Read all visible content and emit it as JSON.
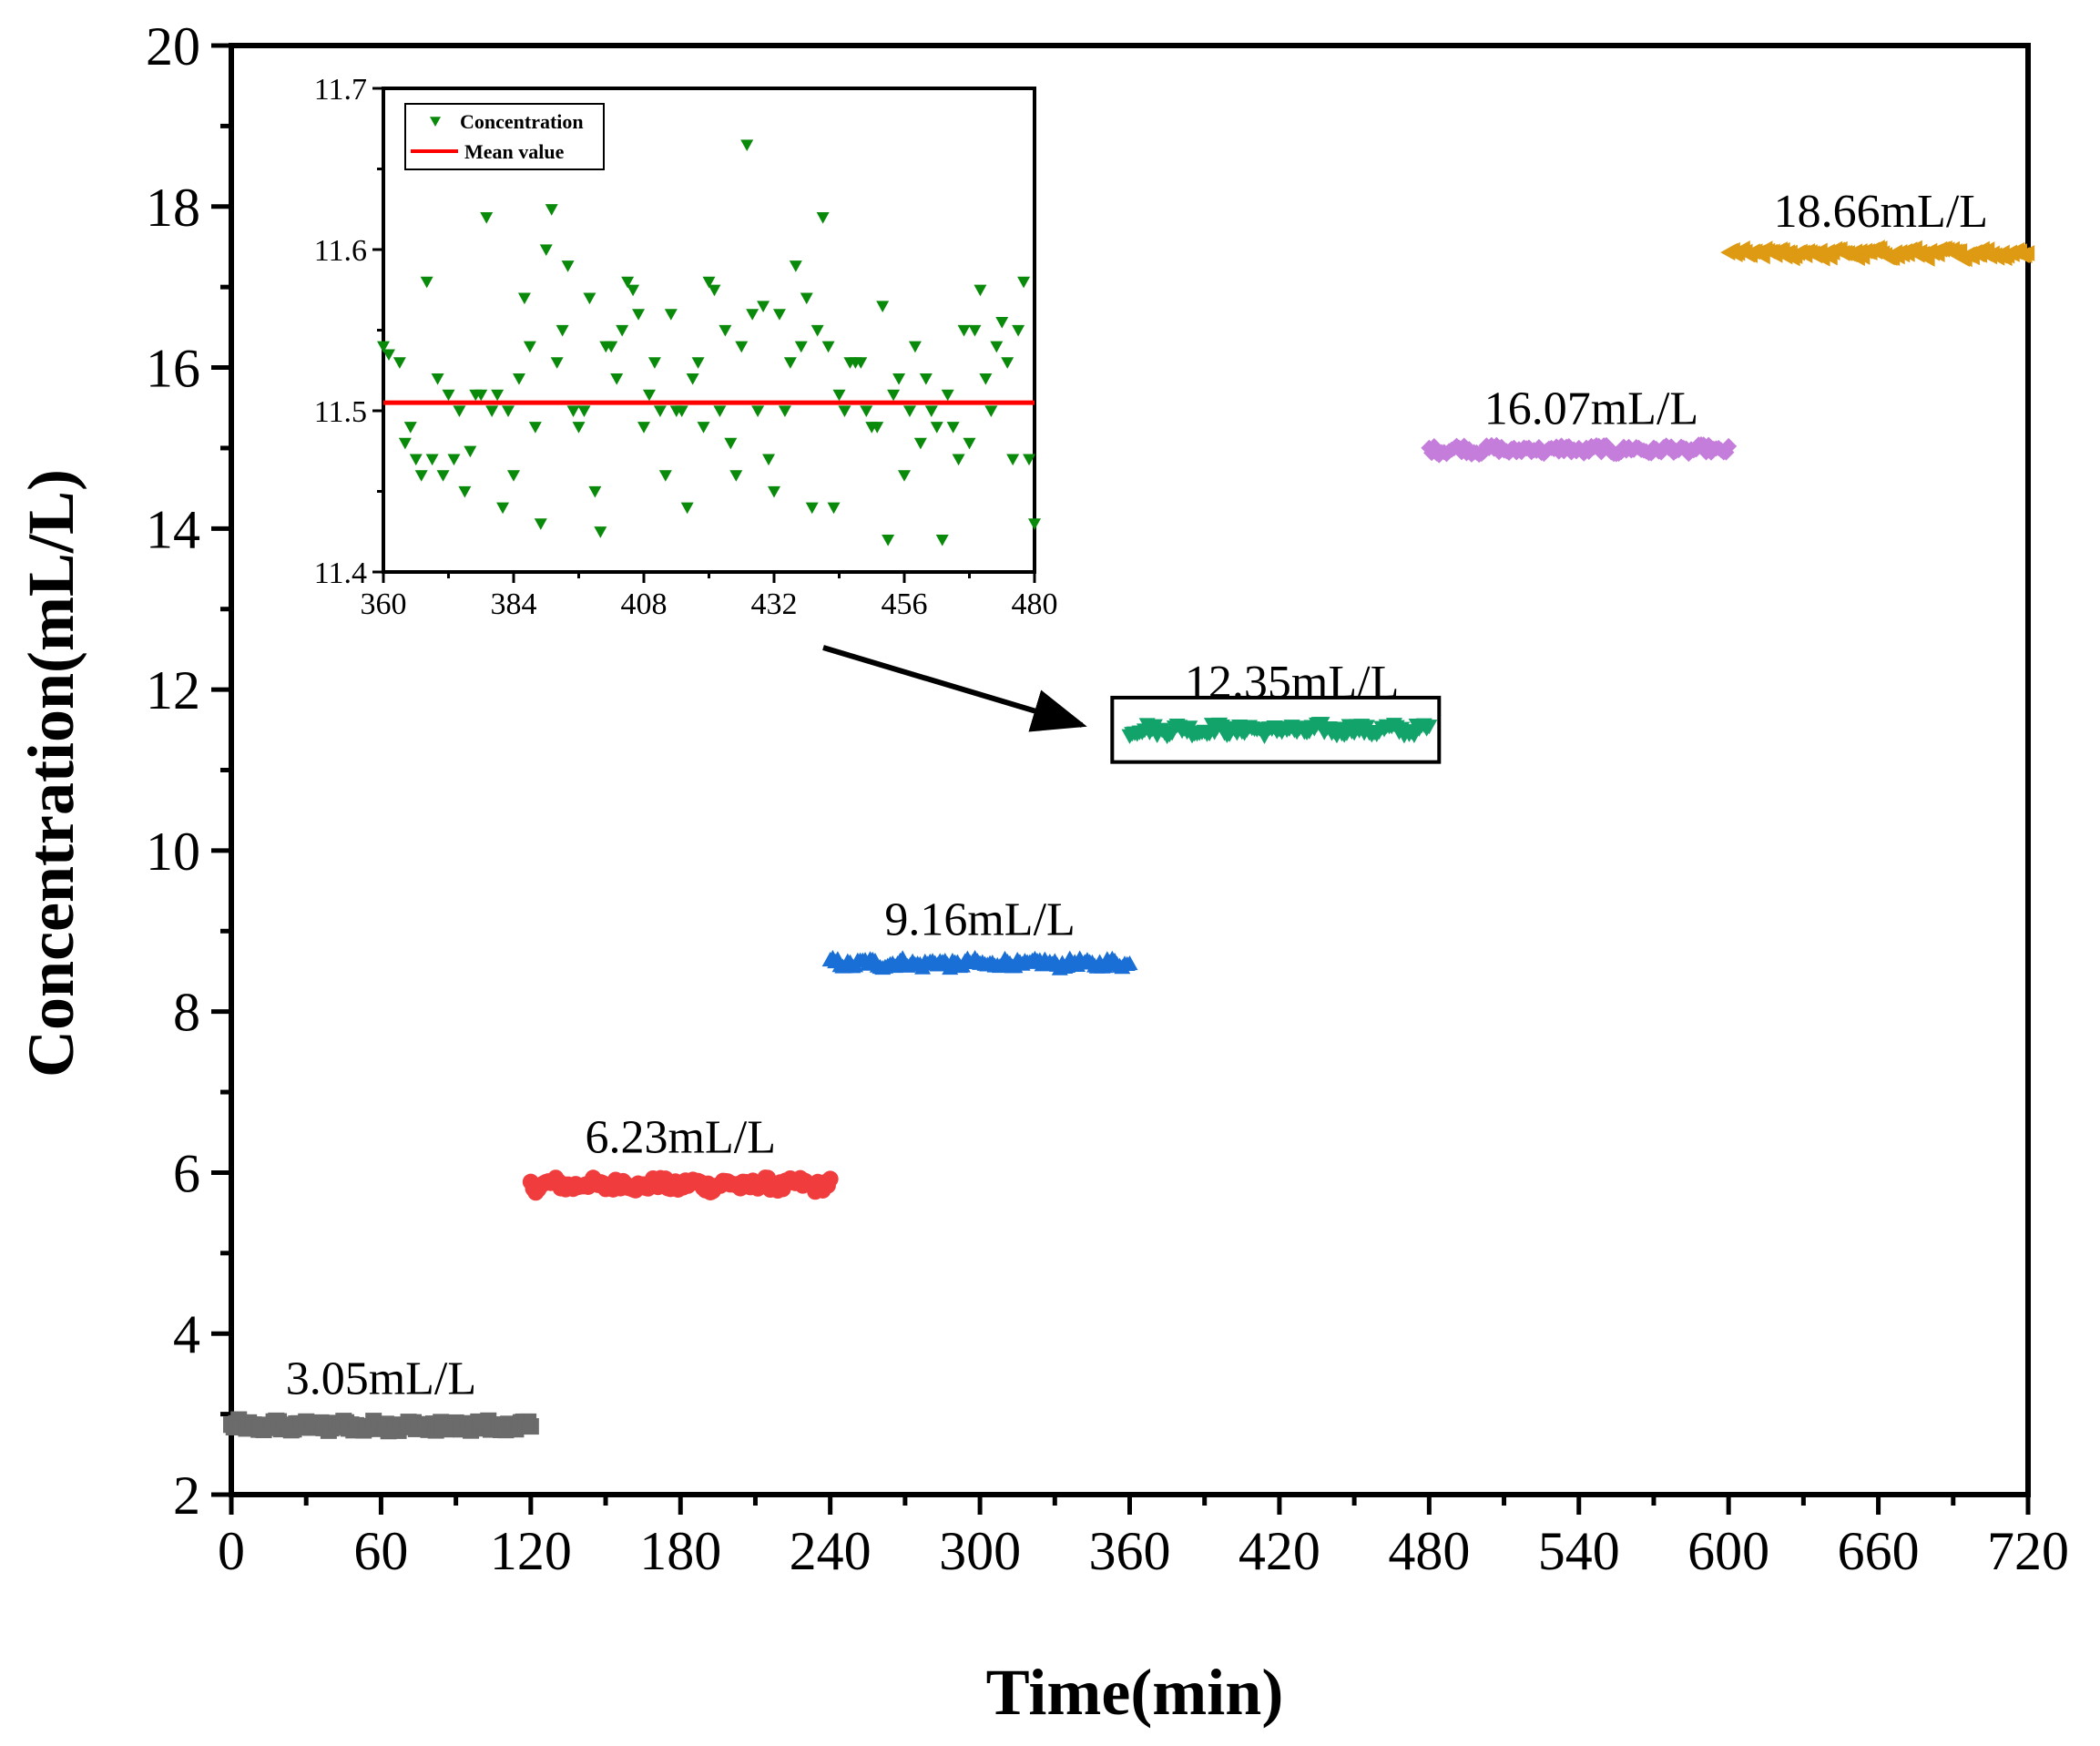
{
  "chart_data": {
    "type": "scatter",
    "xlabel": "Time(min)",
    "ylabel": "Concentration(mL/L)",
    "xlim": [
      0,
      720
    ],
    "ylim": [
      2,
      20
    ],
    "xticks": [
      0,
      60,
      120,
      180,
      240,
      300,
      360,
      420,
      480,
      540,
      600,
      660,
      720
    ],
    "yticks": [
      2,
      4,
      6,
      8,
      10,
      12,
      14,
      16,
      18,
      20
    ],
    "grid": false,
    "series": [
      {
        "name": "3.05mL/L",
        "label": "3.05mL/L",
        "marker": "square",
        "color": "#6b6b6b",
        "x_start": 0,
        "x_end": 120,
        "mean": 2.85,
        "jitter": 0.06,
        "label_x": 60,
        "label_y": 3.25
      },
      {
        "name": "6.23mL/L",
        "label": "6.23mL/L",
        "marker": "circle",
        "color": "#f03c3c",
        "x_start": 120,
        "x_end": 240,
        "mean": 5.85,
        "jitter": 0.07,
        "label_x": 180,
        "label_y": 6.25
      },
      {
        "name": "9.16mL/L",
        "label": "9.16mL/L",
        "marker": "triangle-up",
        "color": "#1a6fd6",
        "x_start": 240,
        "x_end": 360,
        "mean": 8.6,
        "jitter": 0.05,
        "label_x": 300,
        "label_y": 8.95
      },
      {
        "name": "12.35mL/L",
        "label": "12.35mL/L",
        "marker": "triangle-down",
        "color": "#11a36a",
        "x_start": 360,
        "x_end": 480,
        "mean": 11.5,
        "jitter": 0.06,
        "label_x": 425,
        "label_y": 11.9
      },
      {
        "name": "16.07mL/L",
        "label": "16.07mL/L",
        "marker": "diamond",
        "color": "#c57ddb",
        "x_start": 480,
        "x_end": 600,
        "mean": 14.98,
        "jitter": 0.05,
        "label_x": 545,
        "label_y": 15.3
      },
      {
        "name": "18.66mL/L",
        "label": "18.66mL/L",
        "marker": "triangle-left",
        "color": "#dd9a12",
        "x_start": 600,
        "x_end": 720,
        "mean": 17.42,
        "jitter": 0.05,
        "label_x": 661,
        "label_y": 17.75
      }
    ],
    "highlight_box": {
      "x_range": [
        353,
        484
      ],
      "y_range": [
        11.1,
        11.9
      ]
    },
    "inset": {
      "xlim": [
        360,
        480
      ],
      "ylim": [
        11.4,
        11.7
      ],
      "xticks": [
        360,
        384,
        408,
        432,
        456,
        480
      ],
      "yticks": [
        11.4,
        11.5,
        11.6,
        11.7
      ],
      "legend": {
        "position": "top-left",
        "entries": [
          "Concentration",
          "Mean value"
        ]
      },
      "mean_value": 11.505,
      "mean_color": "#ff0000",
      "marker_color": "#0a8a0a",
      "points": [
        {
          "x": 360,
          "y": 11.54
        },
        {
          "x": 361,
          "y": 11.535
        },
        {
          "x": 363,
          "y": 11.53
        },
        {
          "x": 364,
          "y": 11.48
        },
        {
          "x": 365,
          "y": 11.49
        },
        {
          "x": 366,
          "y": 11.47
        },
        {
          "x": 367,
          "y": 11.46
        },
        {
          "x": 368,
          "y": 11.58
        },
        {
          "x": 369,
          "y": 11.47
        },
        {
          "x": 370,
          "y": 11.52
        },
        {
          "x": 371,
          "y": 11.46
        },
        {
          "x": 372,
          "y": 11.51
        },
        {
          "x": 373,
          "y": 11.47
        },
        {
          "x": 374,
          "y": 11.5
        },
        {
          "x": 375,
          "y": 11.45
        },
        {
          "x": 376,
          "y": 11.475
        },
        {
          "x": 377,
          "y": 11.51
        },
        {
          "x": 378,
          "y": 11.51
        },
        {
          "x": 379,
          "y": 11.62
        },
        {
          "x": 380,
          "y": 11.5
        },
        {
          "x": 381,
          "y": 11.51
        },
        {
          "x": 382,
          "y": 11.44
        },
        {
          "x": 383,
          "y": 11.5
        },
        {
          "x": 384,
          "y": 11.46
        },
        {
          "x": 385,
          "y": 11.52
        },
        {
          "x": 386,
          "y": 11.57
        },
        {
          "x": 387,
          "y": 11.54
        },
        {
          "x": 388,
          "y": 11.49
        },
        {
          "x": 389,
          "y": 11.43
        },
        {
          "x": 390,
          "y": 11.6
        },
        {
          "x": 391,
          "y": 11.625
        },
        {
          "x": 392,
          "y": 11.53
        },
        {
          "x": 393,
          "y": 11.55
        },
        {
          "x": 394,
          "y": 11.59
        },
        {
          "x": 395,
          "y": 11.5
        },
        {
          "x": 396,
          "y": 11.49
        },
        {
          "x": 397,
          "y": 11.5
        },
        {
          "x": 398,
          "y": 11.57
        },
        {
          "x": 399,
          "y": 11.45
        },
        {
          "x": 400,
          "y": 11.425
        },
        {
          "x": 401,
          "y": 11.54
        },
        {
          "x": 402,
          "y": 11.54
        },
        {
          "x": 403,
          "y": 11.52
        },
        {
          "x": 404,
          "y": 11.55
        },
        {
          "x": 405,
          "y": 11.58
        },
        {
          "x": 406,
          "y": 11.575
        },
        {
          "x": 407,
          "y": 11.56
        },
        {
          "x": 408,
          "y": 11.49
        },
        {
          "x": 409,
          "y": 11.51
        },
        {
          "x": 410,
          "y": 11.53
        },
        {
          "x": 411,
          "y": 11.5
        },
        {
          "x": 412,
          "y": 11.46
        },
        {
          "x": 413,
          "y": 11.56
        },
        {
          "x": 414,
          "y": 11.5
        },
        {
          "x": 415,
          "y": 11.5
        },
        {
          "x": 416,
          "y": 11.44
        },
        {
          "x": 417,
          "y": 11.52
        },
        {
          "x": 418,
          "y": 11.53
        },
        {
          "x": 419,
          "y": 11.49
        },
        {
          "x": 420,
          "y": 11.58
        },
        {
          "x": 421,
          "y": 11.575
        },
        {
          "x": 422,
          "y": 11.5
        },
        {
          "x": 423,
          "y": 11.55
        },
        {
          "x": 424,
          "y": 11.48
        },
        {
          "x": 425,
          "y": 11.46
        },
        {
          "x": 426,
          "y": 11.54
        },
        {
          "x": 427,
          "y": 11.665
        },
        {
          "x": 428,
          "y": 11.56
        },
        {
          "x": 429,
          "y": 11.5
        },
        {
          "x": 430,
          "y": 11.565
        },
        {
          "x": 431,
          "y": 11.47
        },
        {
          "x": 432,
          "y": 11.45
        },
        {
          "x": 433,
          "y": 11.56
        },
        {
          "x": 434,
          "y": 11.5
        },
        {
          "x": 435,
          "y": 11.53
        },
        {
          "x": 436,
          "y": 11.59
        },
        {
          "x": 437,
          "y": 11.54
        },
        {
          "x": 438,
          "y": 11.57
        },
        {
          "x": 439,
          "y": 11.44
        },
        {
          "x": 440,
          "y": 11.55
        },
        {
          "x": 441,
          "y": 11.62
        },
        {
          "x": 442,
          "y": 11.54
        },
        {
          "x": 443,
          "y": 11.44
        },
        {
          "x": 444,
          "y": 11.51
        },
        {
          "x": 445,
          "y": 11.5
        },
        {
          "x": 446,
          "y": 11.53
        },
        {
          "x": 447,
          "y": 11.53
        },
        {
          "x": 448,
          "y": 11.53
        },
        {
          "x": 449,
          "y": 11.5
        },
        {
          "x": 450,
          "y": 11.49
        },
        {
          "x": 451,
          "y": 11.49
        },
        {
          "x": 452,
          "y": 11.565
        },
        {
          "x": 453,
          "y": 11.42
        },
        {
          "x": 454,
          "y": 11.51
        },
        {
          "x": 455,
          "y": 11.52
        },
        {
          "x": 456,
          "y": 11.46
        },
        {
          "x": 457,
          "y": 11.5
        },
        {
          "x": 458,
          "y": 11.54
        },
        {
          "x": 459,
          "y": 11.48
        },
        {
          "x": 460,
          "y": 11.52
        },
        {
          "x": 461,
          "y": 11.5
        },
        {
          "x": 462,
          "y": 11.49
        },
        {
          "x": 463,
          "y": 11.42
        },
        {
          "x": 464,
          "y": 11.51
        },
        {
          "x": 465,
          "y": 11.49
        },
        {
          "x": 466,
          "y": 11.47
        },
        {
          "x": 467,
          "y": 11.55
        },
        {
          "x": 468,
          "y": 11.48
        },
        {
          "x": 469,
          "y": 11.55
        },
        {
          "x": 470,
          "y": 11.575
        },
        {
          "x": 471,
          "y": 11.52
        },
        {
          "x": 472,
          "y": 11.5
        },
        {
          "x": 473,
          "y": 11.54
        },
        {
          "x": 474,
          "y": 11.555
        },
        {
          "x": 475,
          "y": 11.53
        },
        {
          "x": 476,
          "y": 11.47
        },
        {
          "x": 477,
          "y": 11.55
        },
        {
          "x": 478,
          "y": 11.58
        },
        {
          "x": 479,
          "y": 11.47
        },
        {
          "x": 480,
          "y": 11.43
        }
      ]
    }
  }
}
